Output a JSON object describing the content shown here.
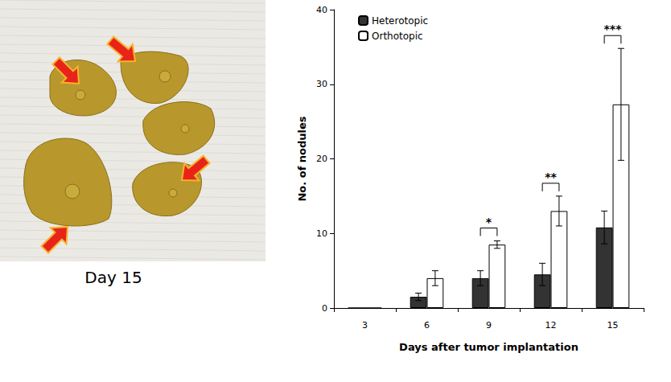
{
  "photo": {
    "caption": "Day 15"
  },
  "chart_data": {
    "type": "bar",
    "categories": [
      "3",
      "6",
      "9",
      "12",
      "15"
    ],
    "x_label": "Days after tumor implantation",
    "y_label": "No. of nodules",
    "ylim": [
      0,
      40
    ],
    "yticks": [
      0,
      10,
      20,
      30,
      40
    ],
    "grid": false,
    "legend": "upper left",
    "series": [
      {
        "name": "Heterotopic",
        "color": "#333333",
        "values": [
          0,
          1.5,
          4,
          4.5,
          10.8
        ],
        "errors": [
          0,
          0.5,
          1,
          1.5,
          2.2
        ]
      },
      {
        "name": "Orthotopic",
        "color": "#ffffff",
        "values": [
          0,
          4,
          8.5,
          13,
          27.3
        ],
        "errors": [
          0,
          1,
          0.5,
          2,
          7.5
        ]
      }
    ],
    "annotations": [
      {
        "category": "9",
        "text": "*"
      },
      {
        "category": "12",
        "text": "**"
      },
      {
        "category": "15",
        "text": "***"
      }
    ]
  }
}
